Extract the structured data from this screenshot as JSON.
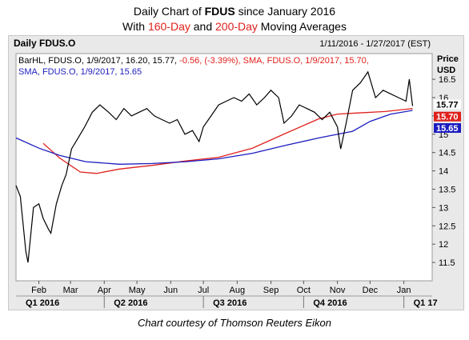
{
  "title": {
    "line1_prefix": "Daily Chart of ",
    "line1_symbol": "FDUS",
    "line1_suffix": " since January 2016",
    "line2_prefix": "With ",
    "line2_sma1": "160-Day",
    "line2_mid": " and ",
    "line2_sma2": "200-Day",
    "line2_suffix": " Moving Averages"
  },
  "panel": {
    "name": "Daily FDUS.O",
    "date_range": "1/11/2016 - 1/27/2017 (EST)",
    "axis_title_1": "Price",
    "axis_title_2": "USD",
    "legend_bar": "BarHL, FDUS.O, 1/9/2017, 16.20, 15.77, ",
    "legend_bar_change": "-0.56, (-3.39%), SMA, FDUS.O, 1/9/2017, 15.70,",
    "legend_sma2": "SMA, FDUS.O, 1/9/2017, 15.65"
  },
  "credit": "Chart courtesy of Thomson Reuters Eikon",
  "colors": {
    "price": "#000000",
    "sma160": "#e0201b",
    "sma200": "#1c1cc0",
    "plot_bg": "#ffffff",
    "frame_bg": "#e9e9e9"
  },
  "chart_data": {
    "type": "line",
    "title": "Daily FDUS.O",
    "x_range": [
      "2016-01-11",
      "2017-01-27"
    ],
    "ylim": [
      11.0,
      17.2
    ],
    "y_ticks": [
      11.5,
      12,
      12.5,
      13,
      13.5,
      14,
      14.5,
      15,
      15.5,
      16,
      16.5
    ],
    "month_ticks": [
      {
        "label": "Feb",
        "date": "2016-02-01"
      },
      {
        "label": "Mar",
        "date": "2016-03-01"
      },
      {
        "label": "Apr",
        "date": "2016-04-01"
      },
      {
        "label": "May",
        "date": "2016-05-01"
      },
      {
        "label": "Jun",
        "date": "2016-06-01"
      },
      {
        "label": "Jul",
        "date": "2016-07-01"
      },
      {
        "label": "Aug",
        "date": "2016-08-01"
      },
      {
        "label": "Sep",
        "date": "2016-09-01"
      },
      {
        "label": "Oct",
        "date": "2016-10-01"
      },
      {
        "label": "Nov",
        "date": "2016-11-01"
      },
      {
        "label": "Dec",
        "date": "2016-12-01"
      },
      {
        "label": "Jan",
        "date": "2017-01-01"
      }
    ],
    "quarter_ticks": [
      {
        "label": "Q1 2016",
        "date": "2016-01-11"
      },
      {
        "label": "Q2 2016",
        "date": "2016-04-01"
      },
      {
        "label": "Q3 2016",
        "date": "2016-07-01"
      },
      {
        "label": "Q4 2016",
        "date": "2016-10-01"
      },
      {
        "label": "Q1 17",
        "date": "2017-01-01"
      }
    ],
    "price_labels": [
      {
        "text": "15.77",
        "value": 15.77,
        "color": "#000000"
      },
      {
        "text": "15.70",
        "value": 15.7,
        "color": "#e0201b"
      },
      {
        "text": "15.65",
        "value": 15.65,
        "color": "#1c1cc0"
      }
    ],
    "series": [
      {
        "name": "BarHL, FDUS.O",
        "color": "#000000",
        "points": [
          [
            "2016-01-11",
            13.6
          ],
          [
            "2016-01-15",
            13.3
          ],
          [
            "2016-01-20",
            11.8
          ],
          [
            "2016-01-22",
            11.5
          ],
          [
            "2016-01-27",
            13.0
          ],
          [
            "2016-02-01",
            13.1
          ],
          [
            "2016-02-05",
            12.7
          ],
          [
            "2016-02-10",
            12.4
          ],
          [
            "2016-02-12",
            12.3
          ],
          [
            "2016-02-17",
            13.1
          ],
          [
            "2016-02-22",
            13.6
          ],
          [
            "2016-02-26",
            13.9
          ],
          [
            "2016-03-02",
            14.6
          ],
          [
            "2016-03-08",
            14.9
          ],
          [
            "2016-03-14",
            15.2
          ],
          [
            "2016-03-21",
            15.6
          ],
          [
            "2016-03-28",
            15.8
          ],
          [
            "2016-04-05",
            15.6
          ],
          [
            "2016-04-12",
            15.4
          ],
          [
            "2016-04-19",
            15.7
          ],
          [
            "2016-04-26",
            15.5
          ],
          [
            "2016-05-03",
            15.6
          ],
          [
            "2016-05-10",
            15.7
          ],
          [
            "2016-05-17",
            15.5
          ],
          [
            "2016-05-24",
            15.4
          ],
          [
            "2016-05-31",
            15.3
          ],
          [
            "2016-06-07",
            15.4
          ],
          [
            "2016-06-14",
            15.0
          ],
          [
            "2016-06-21",
            15.1
          ],
          [
            "2016-06-27",
            14.8
          ],
          [
            "2016-07-01",
            15.2
          ],
          [
            "2016-07-08",
            15.5
          ],
          [
            "2016-07-15",
            15.8
          ],
          [
            "2016-07-22",
            15.9
          ],
          [
            "2016-07-29",
            16.0
          ],
          [
            "2016-08-05",
            15.9
          ],
          [
            "2016-08-12",
            16.1
          ],
          [
            "2016-08-19",
            15.8
          ],
          [
            "2016-08-26",
            16.0
          ],
          [
            "2016-09-01",
            16.2
          ],
          [
            "2016-09-08",
            16.0
          ],
          [
            "2016-09-13",
            15.3
          ],
          [
            "2016-09-20",
            15.5
          ],
          [
            "2016-09-27",
            15.8
          ],
          [
            "2016-10-04",
            15.7
          ],
          [
            "2016-10-11",
            15.6
          ],
          [
            "2016-10-18",
            15.4
          ],
          [
            "2016-10-25",
            15.6
          ],
          [
            "2016-11-01",
            15.2
          ],
          [
            "2016-11-04",
            14.6
          ],
          [
            "2016-11-09",
            15.3
          ],
          [
            "2016-11-15",
            16.2
          ],
          [
            "2016-11-22",
            16.4
          ],
          [
            "2016-11-29",
            16.7
          ],
          [
            "2016-12-06",
            16.0
          ],
          [
            "2016-12-13",
            16.2
          ],
          [
            "2016-12-20",
            16.1
          ],
          [
            "2016-12-27",
            16.0
          ],
          [
            "2017-01-03",
            15.9
          ],
          [
            "2017-01-06",
            16.5
          ],
          [
            "2017-01-09",
            15.77
          ]
        ]
      },
      {
        "name": "SMA, FDUS.O (160-Day)",
        "color": "#e0201b",
        "points": [
          [
            "2016-02-05",
            14.75
          ],
          [
            "2016-02-20",
            14.35
          ],
          [
            "2016-03-10",
            13.97
          ],
          [
            "2016-03-25",
            13.93
          ],
          [
            "2016-04-15",
            14.05
          ],
          [
            "2016-05-15",
            14.15
          ],
          [
            "2016-06-15",
            14.27
          ],
          [
            "2016-07-15",
            14.37
          ],
          [
            "2016-08-15",
            14.62
          ],
          [
            "2016-09-15",
            15.03
          ],
          [
            "2016-10-15",
            15.42
          ],
          [
            "2016-11-01",
            15.55
          ],
          [
            "2016-11-20",
            15.58
          ],
          [
            "2016-12-15",
            15.62
          ],
          [
            "2017-01-09",
            15.7
          ]
        ]
      },
      {
        "name": "SMA, FDUS.O (200-Day)",
        "color": "#1c1cc0",
        "points": [
          [
            "2016-01-11",
            14.9
          ],
          [
            "2016-02-01",
            14.62
          ],
          [
            "2016-02-20",
            14.42
          ],
          [
            "2016-03-15",
            14.25
          ],
          [
            "2016-04-15",
            14.18
          ],
          [
            "2016-05-15",
            14.2
          ],
          [
            "2016-06-15",
            14.25
          ],
          [
            "2016-07-15",
            14.33
          ],
          [
            "2016-08-15",
            14.48
          ],
          [
            "2016-09-15",
            14.7
          ],
          [
            "2016-10-15",
            14.9
          ],
          [
            "2016-11-15",
            15.08
          ],
          [
            "2016-12-01",
            15.35
          ],
          [
            "2016-12-20",
            15.55
          ],
          [
            "2017-01-09",
            15.65
          ]
        ]
      }
    ]
  }
}
